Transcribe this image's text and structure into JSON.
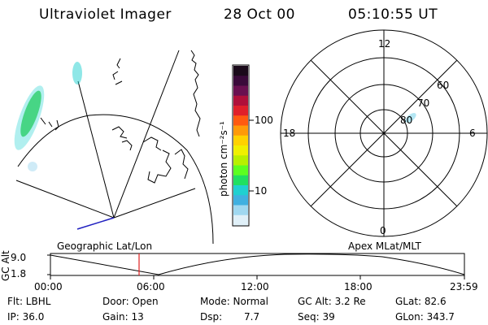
{
  "header": {
    "title": "Ultraviolet Imager",
    "date": "28 Oct 00",
    "time": "05:10:55 UT"
  },
  "colorbar": {
    "unit_label": "photon cm⁻²s⁻¹",
    "ticks": [
      "100",
      "10"
    ],
    "colors": [
      "#1a0a1a",
      "#3a0a3a",
      "#6a1050",
      "#b0103a",
      "#e0202a",
      "#ff5a10",
      "#ff9a08",
      "#ffd200",
      "#f0f000",
      "#b8f000",
      "#5cff20",
      "#20e060",
      "#20d0d0",
      "#40b0e0",
      "#a0d8f0",
      "#e0f0f8"
    ]
  },
  "polar_plot": {
    "labels": [
      "12",
      "18",
      "6",
      "0",
      "60",
      "70",
      "80"
    ]
  },
  "strip_chart": {
    "left_title": "Geographic Lat/Lon",
    "right_title": "Apex MLat/MLT",
    "y_axis_label": "GC Alt",
    "y_ticks": [
      "9.0",
      "1.8"
    ],
    "x_ticks": [
      "00:00",
      "06:00",
      "12:00",
      "18:00",
      "23:59"
    ]
  },
  "info": {
    "flt": "Flt: LBHL",
    "ip": "IP: 36.0",
    "door": "Door: Open",
    "gain": "Gain: 13",
    "mode": "Mode: Normal",
    "dsp_label": "Dsp:",
    "dsp_value": "7.7",
    "gc_alt": "GC Alt: 3.2 Re",
    "seq": "Seq: 39",
    "glat": "GLat: 82.6",
    "glon": "GLon: 343.7"
  }
}
